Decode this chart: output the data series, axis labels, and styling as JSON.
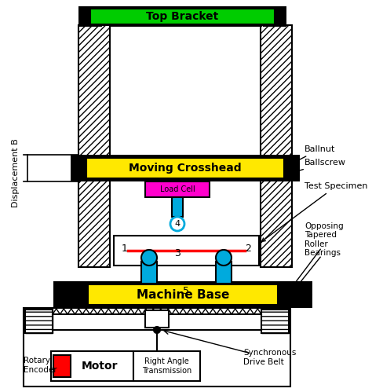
{
  "colors": {
    "yellow": "#FFE800",
    "green": "#00CC00",
    "black": "#000000",
    "white": "#ffffff",
    "magenta": "#FF00CC",
    "cyan": "#00AADD",
    "red": "#FF0000"
  },
  "labels": {
    "top_bracket": "Top Bracket",
    "moving_crosshead": "Moving Crosshead",
    "load_cell": "Load Cell",
    "machine_base": "Machine Base",
    "displacement_b": "Displacement B",
    "ballnut": "Ballnut",
    "ballscrew": "Ballscrew",
    "test_specimen": "Test Specimen",
    "opposing": "Opposing\nTapered\nRoller\nBearings",
    "rotary_encoder": "Rotary\nEncoder",
    "motor": "Motor",
    "right_angle": "Right Angle\nTransmission",
    "sync_belt": "Synchronous\nDrive Belt"
  }
}
